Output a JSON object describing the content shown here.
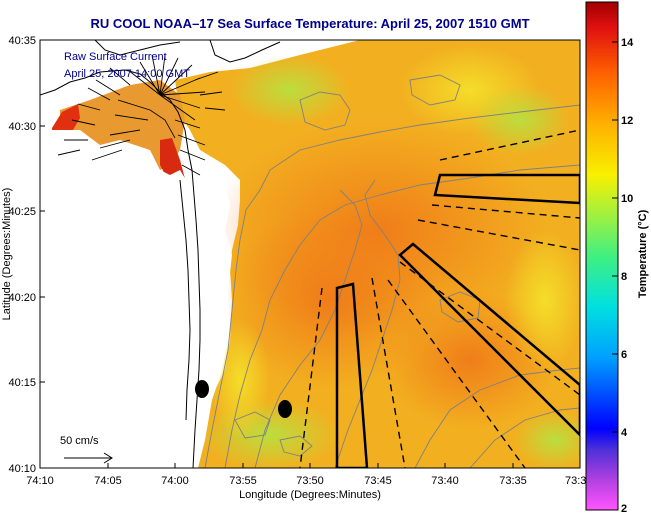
{
  "title": "RU COOL  NOAA–17  Sea Surface Temperature:  April 25, 2007 1510 GMT",
  "current_legend": {
    "line1": "Raw Surface Current",
    "line2": "April 25, 2007 14:00 GMT"
  },
  "scale_label": "50 cm/s",
  "x_axis": {
    "label": "Longitude (Degrees:Minutes)",
    "ticks": [
      "74:10",
      "74:05",
      "74:00",
      "73:55",
      "73:50",
      "73:45",
      "73:40",
      "73:35",
      "73:3"
    ]
  },
  "y_axis": {
    "label": "Latitude (Degrees:Minutes)",
    "ticks": [
      "40:35",
      "40:30",
      "40:25",
      "40:20",
      "40:15",
      "40:10"
    ]
  },
  "colorbar": {
    "label": "Temperature (°C)",
    "ticks": [
      "14",
      "12",
      "10",
      "8",
      "6",
      "4",
      "2"
    ],
    "range": [
      2,
      15
    ]
  },
  "colors": {
    "title": "#00008b",
    "legend_text": "#00008b",
    "land": "#ffffff",
    "sst_base": "#f2b020"
  }
}
